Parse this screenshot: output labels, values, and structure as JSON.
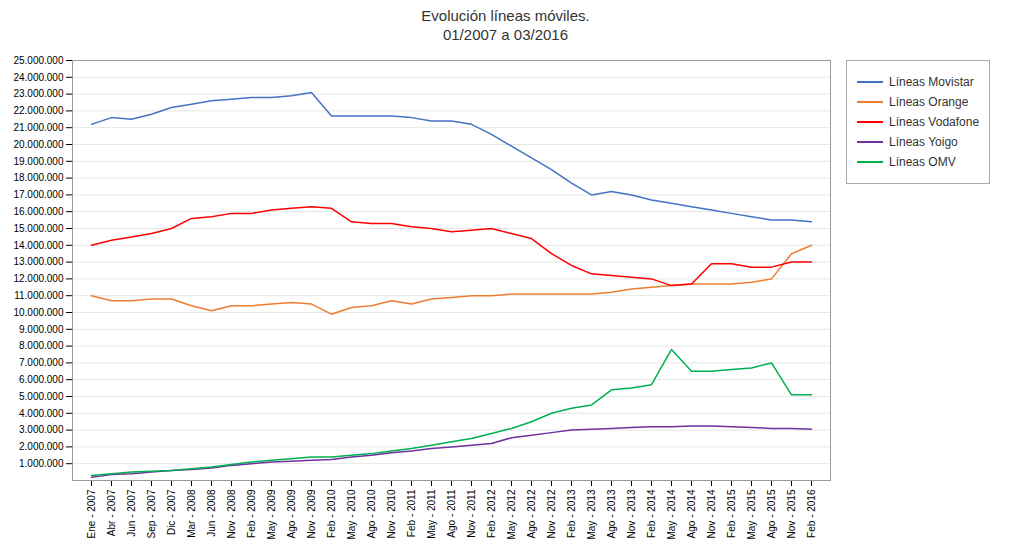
{
  "chart_data": {
    "type": "line",
    "title": "Evolución líneas móviles.\n01/2007 a 03/2016",
    "categories": [
      "Ene - 2007",
      "Abr - 2007",
      "Jun - 2007",
      "Sep - 2007",
      "Dic - 2007",
      "Mar - 2008",
      "Jun - 2008",
      "Nov - 2008",
      "Feb - 2009",
      "May - 2009",
      "Ago - 2009",
      "Nov - 2009",
      "Feb - 2010",
      "May - 2010",
      "Ago - 2010",
      "Nov - 2010",
      "Feb - 2011",
      "May - 2011",
      "Ago - 2011",
      "Nov - 2011",
      "Feb - 2012",
      "May - 2012",
      "Ago - 2012",
      "Nov - 2012",
      "Feb - 2013",
      "May - 2013",
      "Ago - 2013",
      "Nov - 2013",
      "Feb - 2014",
      "May - 2014",
      "Ago - 2014",
      "Nov - 2014",
      "Feb - 2015",
      "May - 2015",
      "Ago - 2015",
      "Nov - 2015",
      "Feb - 2016"
    ],
    "series": [
      {
        "name": "Líneas Movistar",
        "color": "#4472C4",
        "values": [
          21200000,
          21600000,
          21500000,
          21800000,
          22200000,
          22400000,
          22600000,
          22700000,
          22800000,
          22800000,
          22900000,
          23100000,
          21700000,
          21700000,
          21700000,
          21700000,
          21600000,
          21400000,
          21400000,
          21200000,
          20600000,
          19900000,
          19200000,
          18500000,
          17700000,
          17000000,
          17200000,
          17000000,
          16700000,
          16500000,
          16300000,
          16100000,
          15900000,
          15700000,
          15500000,
          15500000,
          15400000
        ]
      },
      {
        "name": "Líneas Orange",
        "color": "#ED7D31",
        "values": [
          11000000,
          10700000,
          10700000,
          10800000,
          10800000,
          10400000,
          10100000,
          10400000,
          10400000,
          10500000,
          10600000,
          10500000,
          9900000,
          10300000,
          10400000,
          10700000,
          10500000,
          10800000,
          10900000,
          11000000,
          11000000,
          11100000,
          11100000,
          11100000,
          11100000,
          11100000,
          11200000,
          11400000,
          11500000,
          11600000,
          11700000,
          11700000,
          11700000,
          11800000,
          12000000,
          13500000,
          14000000
        ]
      },
      {
        "name": "Líneas Vodafone",
        "color": "#FF0000",
        "values": [
          14000000,
          14300000,
          14500000,
          14700000,
          15000000,
          15600000,
          15700000,
          15900000,
          15900000,
          16100000,
          16200000,
          16300000,
          16200000,
          15400000,
          15300000,
          15300000,
          15100000,
          15000000,
          14800000,
          14900000,
          15000000,
          14700000,
          14400000,
          13500000,
          12800000,
          12300000,
          12200000,
          12100000,
          12000000,
          11600000,
          11700000,
          12900000,
          12900000,
          12700000,
          12700000,
          13000000,
          13000000
        ]
      },
      {
        "name": "Líneas Yoigo",
        "color": "#7030A0",
        "values": [
          200000,
          350000,
          400000,
          500000,
          600000,
          650000,
          750000,
          900000,
          1000000,
          1100000,
          1150000,
          1200000,
          1250000,
          1400000,
          1500000,
          1650000,
          1750000,
          1900000,
          2000000,
          2100000,
          2200000,
          2550000,
          2700000,
          2850000,
          3000000,
          3050000,
          3100000,
          3150000,
          3200000,
          3200000,
          3250000,
          3250000,
          3200000,
          3150000,
          3100000,
          3100000,
          3050000
        ]
      },
      {
        "name": "Líneas OMV",
        "color": "#00B050",
        "values": [
          300000,
          400000,
          500000,
          550000,
          600000,
          700000,
          800000,
          950000,
          1100000,
          1200000,
          1300000,
          1400000,
          1400000,
          1500000,
          1600000,
          1750000,
          1900000,
          2100000,
          2300000,
          2500000,
          2800000,
          3100000,
          3500000,
          4000000,
          4300000,
          4500000,
          5400000,
          5500000,
          5700000,
          7800000,
          6500000,
          6500000,
          6600000,
          6700000,
          7000000,
          5100000,
          5100000
        ]
      }
    ],
    "ylim": [
      0,
      25000000
    ],
    "yticks": [
      {
        "value": 1000000,
        "label": "1.000.000"
      },
      {
        "value": 2000000,
        "label": "2.000.000"
      },
      {
        "value": 3000000,
        "label": "3.000.000"
      },
      {
        "value": 4000000,
        "label": "4.000.000"
      },
      {
        "value": 5000000,
        "label": "5.000.000"
      },
      {
        "value": 6000000,
        "label": "6.000.000"
      },
      {
        "value": 7000000,
        "label": "7.000.000"
      },
      {
        "value": 8000000,
        "label": "8.000.000"
      },
      {
        "value": 9000000,
        "label": "9.000.000"
      },
      {
        "value": 10000000,
        "label": "10.000.000"
      },
      {
        "value": 11000000,
        "label": "11.000.000"
      },
      {
        "value": 12000000,
        "label": "12.000.000"
      },
      {
        "value": 13000000,
        "label": "13.000.000"
      },
      {
        "value": 14000000,
        "label": "14.000.000"
      },
      {
        "value": 15000000,
        "label": "15.000.000"
      },
      {
        "value": 16000000,
        "label": "16.000.000"
      },
      {
        "value": 17000000,
        "label": "17.000.000"
      },
      {
        "value": 18000000,
        "label": "18.000.000"
      },
      {
        "value": 19000000,
        "label": "19.000.000"
      },
      {
        "value": 20000000,
        "label": "20.000.000"
      },
      {
        "value": 21000000,
        "label": "21.000.000"
      },
      {
        "value": 22000000,
        "label": "22.000.000"
      },
      {
        "value": 23000000,
        "label": "23.000.000"
      },
      {
        "value": 24000000,
        "label": "24.000.000"
      },
      {
        "value": 25000000,
        "label": "25.000.000"
      }
    ],
    "grid": true,
    "legend": "right"
  }
}
